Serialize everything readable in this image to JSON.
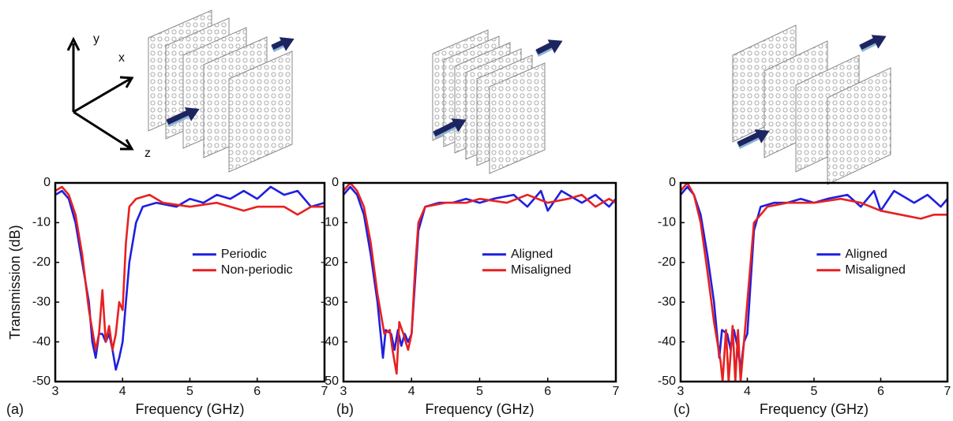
{
  "axis_labels_3d": [
    "y",
    "x",
    "z"
  ],
  "chart_data": [
    {
      "type": "line",
      "panel_label": "(a)",
      "xlabel": "Frequency (GHz)",
      "ylabel": "Transmission (dB)",
      "xlim": [
        3,
        7
      ],
      "xticks": [
        3,
        4,
        5,
        6,
        7
      ],
      "ylim": [
        -50,
        0
      ],
      "yticks": [
        0,
        -10,
        -20,
        -30,
        -40,
        -50
      ],
      "legend": "center right",
      "series": [
        {
          "name": "Periodic",
          "color": "#1f1fe0",
          "x": [
            3.0,
            3.1,
            3.2,
            3.3,
            3.4,
            3.5,
            3.55,
            3.6,
            3.65,
            3.7,
            3.75,
            3.8,
            3.85,
            3.9,
            3.95,
            4.0,
            4.05,
            4.1,
            4.2,
            4.3,
            4.5,
            4.8,
            5.0,
            5.2,
            5.4,
            5.6,
            5.8,
            6.0,
            6.2,
            6.4,
            6.6,
            6.8,
            7.0
          ],
          "values": [
            -3,
            -2,
            -4,
            -10,
            -20,
            -30,
            -40,
            -44,
            -38,
            -38,
            -40,
            -38,
            -42,
            -47,
            -44,
            -40,
            -30,
            -20,
            -10,
            -6,
            -5,
            -6,
            -4,
            -5,
            -3,
            -4,
            -2,
            -4,
            -1,
            -3,
            -2,
            -6,
            -5
          ]
        },
        {
          "name": "Non-periodic",
          "color": "#e82020",
          "x": [
            3.0,
            3.1,
            3.2,
            3.3,
            3.4,
            3.5,
            3.6,
            3.65,
            3.7,
            3.75,
            3.8,
            3.85,
            3.9,
            3.95,
            4.0,
            4.05,
            4.1,
            4.2,
            4.4,
            4.6,
            5.0,
            5.4,
            5.6,
            5.8,
            6.0,
            6.4,
            6.6,
            6.8,
            7.0
          ],
          "values": [
            -2,
            -1,
            -3,
            -8,
            -18,
            -32,
            -42,
            -38,
            -27,
            -40,
            -36,
            -42,
            -38,
            -30,
            -32,
            -15,
            -6,
            -4,
            -3,
            -5,
            -6,
            -5,
            -6,
            -7,
            -6,
            -6,
            -8,
            -6,
            -6
          ]
        }
      ]
    },
    {
      "type": "line",
      "panel_label": "(b)",
      "xlabel": "Frequency (GHz)",
      "xlim": [
        3,
        7
      ],
      "xticks": [
        3,
        4,
        5,
        6,
        7
      ],
      "ylim": [
        -50,
        0
      ],
      "yticks": [
        0,
        -10,
        -20,
        -30,
        -40,
        -50
      ],
      "legend": "center right",
      "series": [
        {
          "name": "Aligned",
          "color": "#1f1fe0",
          "x": [
            3.0,
            3.1,
            3.2,
            3.3,
            3.4,
            3.5,
            3.58,
            3.62,
            3.7,
            3.75,
            3.8,
            3.85,
            3.9,
            3.95,
            4.0,
            4.05,
            4.1,
            4.2,
            4.4,
            4.6,
            4.8,
            5.0,
            5.2,
            5.5,
            5.7,
            5.9,
            6.0,
            6.2,
            6.5,
            6.7,
            6.9,
            7.0
          ],
          "values": [
            -3,
            -1,
            -3,
            -8,
            -18,
            -30,
            -44,
            -37,
            -38,
            -42,
            -37,
            -41,
            -38,
            -40,
            -38,
            -25,
            -12,
            -6,
            -5,
            -5,
            -4,
            -5,
            -4,
            -3,
            -6,
            -2,
            -7,
            -2,
            -5,
            -3,
            -6,
            -4
          ]
        },
        {
          "name": "Misaligned",
          "color": "#e82020",
          "x": [
            3.0,
            3.1,
            3.2,
            3.3,
            3.4,
            3.5,
            3.6,
            3.68,
            3.72,
            3.78,
            3.82,
            3.88,
            3.95,
            4.0,
            4.05,
            4.1,
            4.2,
            4.5,
            4.8,
            5.0,
            5.4,
            5.7,
            6.0,
            6.3,
            6.5,
            6.7,
            6.9,
            7.0
          ],
          "values": [
            -2,
            0,
            -2,
            -6,
            -15,
            -28,
            -38,
            -37,
            -42,
            -48,
            -35,
            -38,
            -42,
            -38,
            -22,
            -10,
            -6,
            -5,
            -5,
            -4,
            -5,
            -3,
            -5,
            -4,
            -3,
            -6,
            -4,
            -5
          ]
        }
      ]
    },
    {
      "type": "line",
      "panel_label": "(c)",
      "xlabel": "Frequency (GHz)",
      "xlim": [
        3,
        7
      ],
      "xticks": [
        3,
        4,
        5,
        6,
        7
      ],
      "ylim": [
        -50,
        0
      ],
      "yticks": [
        0,
        -10,
        -20,
        -30,
        -40,
        -50
      ],
      "legend": "center right",
      "series": [
        {
          "name": "Aligned",
          "color": "#1f1fe0",
          "x": [
            3.0,
            3.1,
            3.2,
            3.3,
            3.4,
            3.5,
            3.58,
            3.62,
            3.7,
            3.75,
            3.8,
            3.85,
            3.9,
            3.95,
            4.0,
            4.05,
            4.1,
            4.2,
            4.4,
            4.6,
            4.8,
            5.0,
            5.2,
            5.5,
            5.7,
            5.9,
            6.0,
            6.2,
            6.5,
            6.7,
            6.9,
            7.0
          ],
          "values": [
            -3,
            -1,
            -3,
            -8,
            -18,
            -30,
            -44,
            -37,
            -38,
            -42,
            -37,
            -41,
            -47,
            -40,
            -38,
            -25,
            -12,
            -6,
            -5,
            -5,
            -4,
            -5,
            -4,
            -3,
            -6,
            -2,
            -7,
            -2,
            -5,
            -3,
            -6,
            -4
          ]
        },
        {
          "name": "Misaligned",
          "color": "#e82020",
          "x": [
            3.0,
            3.1,
            3.2,
            3.3,
            3.4,
            3.5,
            3.6,
            3.63,
            3.68,
            3.72,
            3.78,
            3.82,
            3.86,
            3.9,
            3.95,
            4.05,
            4.1,
            4.3,
            4.6,
            5.0,
            5.4,
            5.7,
            6.0,
            6.3,
            6.6,
            6.8,
            7.0
          ],
          "values": [
            -2,
            0,
            -3,
            -10,
            -22,
            -35,
            -45,
            -50,
            -37,
            -50,
            -36,
            -50,
            -37,
            -50,
            -40,
            -20,
            -10,
            -6,
            -5,
            -5,
            -4,
            -5,
            -7,
            -8,
            -9,
            -8,
            -8
          ]
        }
      ]
    }
  ]
}
